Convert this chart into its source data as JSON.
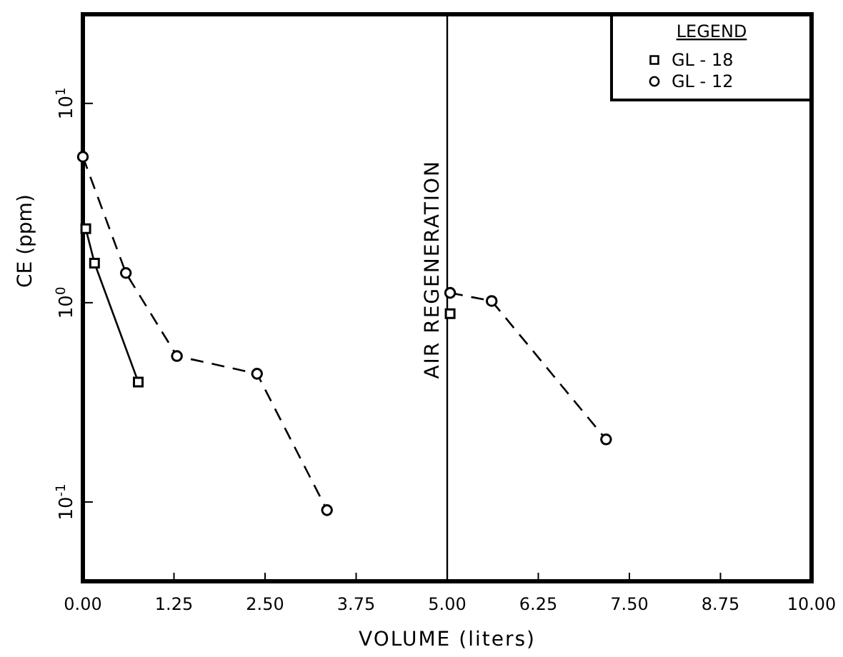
{
  "chart_data": {
    "type": "line",
    "xlabel": "VOLUME (liters)",
    "ylabel": "CE (ppm)",
    "legend_title": "LEGEND",
    "legend": "top right",
    "log": "y",
    "grid": false,
    "xlim": [
      0,
      10
    ],
    "xticks": [
      {
        "value": 0,
        "label": "0.00"
      },
      {
        "value": 1.25,
        "label": "1.25"
      },
      {
        "value": 2.5,
        "label": "2.50"
      },
      {
        "value": 3.75,
        "label": "3.75"
      },
      {
        "value": 5,
        "label": "5.00"
      },
      {
        "value": 6.25,
        "label": "6.25"
      },
      {
        "value": 7.5,
        "label": "7.50"
      },
      {
        "value": 8.75,
        "label": "8.75"
      },
      {
        "value": 10,
        "label": "10.00"
      }
    ],
    "ylim": [
      0.04,
      28
    ],
    "yticks": [
      {
        "value": 0.1,
        "label": "10$^{-1}$"
      },
      {
        "value": 1,
        "label": "10$^{0}$"
      },
      {
        "value": 10,
        "label": "10$^{1}$"
      }
    ],
    "ref_lines": [
      {
        "axis": "x",
        "value": 5,
        "label": "AIR REGENERATION",
        "color": "#000000",
        "line_style": "solid"
      }
    ],
    "series": [
      {
        "name": "GL - 18",
        "color": "#000000",
        "marker": "square",
        "line_style": "solid",
        "x": [
          0.04,
          0.16,
          0.76,
          null,
          5.04
        ],
        "values": [
          2.35,
          1.58,
          0.4,
          null,
          0.88
        ]
      },
      {
        "name": "GL - 12",
        "color": "#000000",
        "marker": "circle",
        "line_style": "dashed",
        "x": [
          0,
          0.59,
          1.29,
          2.39,
          3.35,
          null,
          5.04,
          5.61,
          7.18
        ],
        "values": [
          5.4,
          1.41,
          0.54,
          0.44,
          0.091,
          null,
          1.12,
          1.02,
          0.206
        ]
      }
    ]
  }
}
